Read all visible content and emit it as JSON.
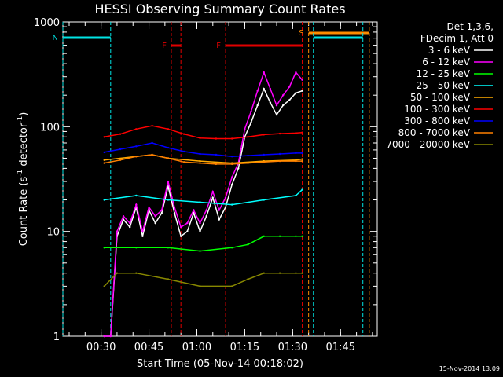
{
  "chart_data": {
    "type": "line",
    "title": "HESSI Observing Summary Count Rates",
    "xlabel": "Start Time (05-Nov-14 00:18:02)",
    "ylabel": "Count Rate (s⁻¹ detector⁻¹)",
    "ylabel_parts": [
      "Count Rate (s",
      "-1",
      " detector",
      "-1",
      ")"
    ],
    "yscale": "log",
    "ylim": [
      1,
      1000
    ],
    "xlim": [
      "00:18:02",
      "01:56:30"
    ],
    "y_ticks": [
      "1",
      "10",
      "100",
      "1000"
    ],
    "x_ticks": [
      "00:30",
      "00:45",
      "01:00",
      "01:15",
      "01:30",
      "01:45"
    ],
    "timestamp": "15-Nov-2014 13:09",
    "legend_header": [
      "Det 1,3,6,",
      "FDecim 1, Att 0"
    ],
    "flags": [
      {
        "label": "N",
        "color": "#00e5e5",
        "start": "00:18:02",
        "end": "00:33:00"
      },
      {
        "label": "F",
        "color": "#e00000",
        "start": "00:52:00",
        "end": "00:55:00"
      },
      {
        "label": "F",
        "color": "#e00000",
        "start": "01:09:00",
        "end": "01:33:00"
      },
      {
        "label": "S",
        "color": "#ff8c00",
        "start": "01:35:00",
        "end": "01:54:00"
      },
      {
        "label": "",
        "color": "#00e5e5",
        "start": "01:36:30",
        "end": "01:52:00"
      }
    ],
    "series": [
      {
        "name": "3 - 6 keV",
        "color": "#ffffff",
        "x": [
          "00:31",
          "00:33",
          "00:35",
          "00:37",
          "00:39",
          "00:41",
          "00:43",
          "00:45",
          "00:47",
          "00:49",
          "00:51",
          "00:53",
          "00:55",
          "00:57",
          "00:59",
          "01:01",
          "01:03",
          "01:05",
          "01:07",
          "01:09",
          "01:11",
          "01:13",
          "01:15",
          "01:17",
          "01:19",
          "01:21",
          "01:23",
          "01:25",
          "01:27",
          "01:29",
          "01:31",
          "01:33"
        ],
        "values": [
          1,
          1,
          9,
          13,
          11,
          17,
          9,
          16,
          12,
          15,
          27,
          15,
          9,
          10,
          15,
          10,
          14,
          21,
          13,
          17,
          28,
          40,
          80,
          110,
          160,
          230,
          170,
          130,
          160,
          180,
          210,
          220
        ]
      },
      {
        "name": "6 - 12 keV",
        "color": "#ff00ff",
        "x": [
          "00:31",
          "00:33",
          "00:35",
          "00:37",
          "00:39",
          "00:41",
          "00:43",
          "00:45",
          "00:47",
          "00:49",
          "00:51",
          "00:53",
          "00:55",
          "00:57",
          "00:59",
          "01:01",
          "01:03",
          "01:05",
          "01:07",
          "01:09",
          "01:11",
          "01:13",
          "01:15",
          "01:17",
          "01:19",
          "01:21",
          "01:23",
          "01:25",
          "01:27",
          "01:29",
          "01:31",
          "01:33"
        ],
        "values": [
          1,
          1,
          10,
          14,
          12,
          18,
          10,
          17,
          14,
          16,
          30,
          17,
          11,
          12,
          16,
          12,
          16,
          24,
          16,
          21,
          33,
          45,
          95,
          140,
          220,
          330,
          230,
          160,
          200,
          240,
          330,
          280
        ]
      },
      {
        "name": "12 - 25 keV",
        "color": "#00ff00",
        "x": [
          "00:31",
          "00:41",
          "00:51",
          "01:01",
          "01:11",
          "01:16",
          "01:21",
          "01:26",
          "01:31",
          "01:33"
        ],
        "values": [
          7,
          7,
          7,
          6.5,
          7,
          7.5,
          9,
          9,
          9,
          9
        ]
      },
      {
        "name": "25 - 50 keV",
        "color": "#00ffff",
        "x": [
          "00:31",
          "00:41",
          "00:51",
          "01:01",
          "01:11",
          "01:21",
          "01:31",
          "01:33"
        ],
        "values": [
          20,
          22,
          20,
          19,
          18,
          20,
          22,
          25
        ]
      },
      {
        "name": "50 - 100 keV",
        "color": "#ffaa00",
        "x": [
          "00:31",
          "00:41",
          "00:46",
          "00:51",
          "01:01",
          "01:11",
          "01:21",
          "01:31",
          "01:33"
        ],
        "values": [
          48,
          52,
          54,
          50,
          47,
          45,
          47,
          48,
          49
        ]
      },
      {
        "name": "100 - 300 keV",
        "color": "#ff0000",
        "x": [
          "00:31",
          "00:36",
          "00:41",
          "00:46",
          "00:51",
          "00:56",
          "01:01",
          "01:06",
          "01:11",
          "01:16",
          "01:21",
          "01:26",
          "01:31",
          "01:33"
        ],
        "values": [
          80,
          85,
          95,
          102,
          95,
          85,
          78,
          77,
          77,
          80,
          84,
          86,
          87,
          88
        ]
      },
      {
        "name": "300 - 800 keV",
        "color": "#0000ff",
        "x": [
          "00:31",
          "00:36",
          "00:41",
          "00:46",
          "00:51",
          "00:56",
          "01:01",
          "01:06",
          "01:11",
          "01:16",
          "01:21",
          "01:26",
          "01:31",
          "01:33"
        ],
        "values": [
          57,
          61,
          65,
          70,
          63,
          58,
          55,
          54,
          52,
          53,
          54,
          55,
          56,
          56
        ]
      },
      {
        "name": "800 - 7000 keV",
        "color": "#ff8000",
        "x": [
          "00:31",
          "00:36",
          "00:41",
          "00:46",
          "00:51",
          "00:56",
          "01:01",
          "01:06",
          "01:11",
          "01:16",
          "01:21",
          "01:26",
          "01:31",
          "01:33"
        ],
        "values": [
          45,
          48,
          52,
          54,
          50,
          46,
          45,
          44,
          44,
          45,
          46,
          47,
          47,
          47
        ]
      },
      {
        "name": "7000 - 20000 keV",
        "color": "#888800",
        "x": [
          "00:31",
          "00:35",
          "00:41",
          "00:51",
          "01:01",
          "01:11",
          "01:16",
          "01:21",
          "01:26",
          "01:31",
          "01:33"
        ],
        "values": [
          3,
          4,
          4,
          3.5,
          3,
          3,
          3.5,
          4,
          4,
          4,
          4
        ]
      }
    ]
  }
}
